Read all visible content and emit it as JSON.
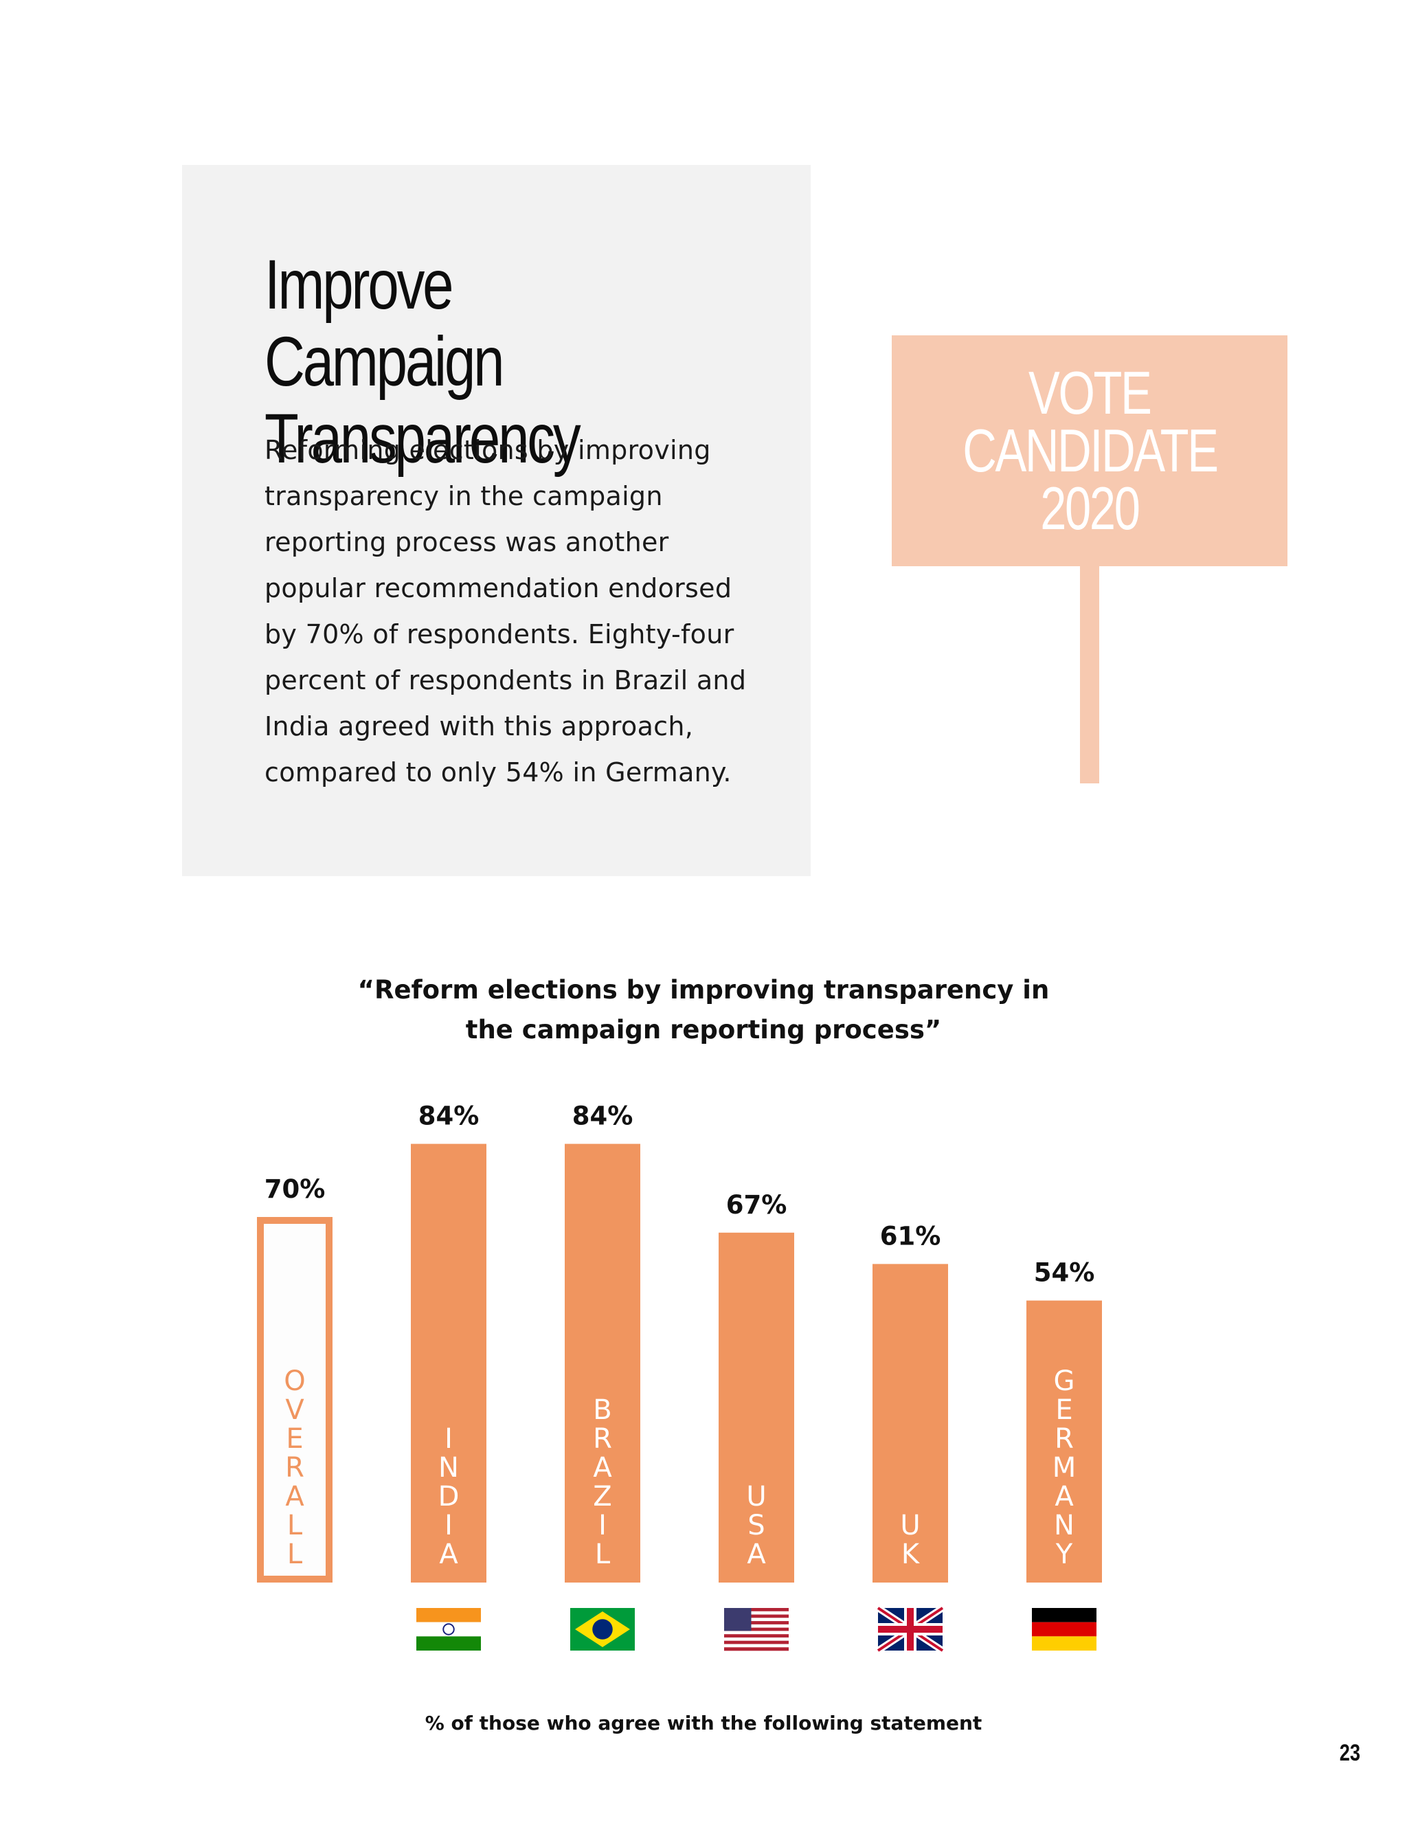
{
  "section": {
    "title_line1": "Improve Campaign",
    "title_line2": "Transparency",
    "body_lines": [
      "Reforming elections by improving",
      "transparency in the campaign",
      "reporting process was another",
      "popular recommendation endorsed",
      "by 70% of respondents. Eighty-four",
      "percent of respondents in Brazil and",
      "India agreed with this approach,",
      "compared to only 54% in Germany."
    ]
  },
  "sign": {
    "line1": "VOTE",
    "line2": "CANDIDATE",
    "line3": "2020"
  },
  "colors": {
    "accent": "#f0955f",
    "sign": "#f7c9b0",
    "panel": "#f2f2f2",
    "outline_fill": "#fdfdfd"
  },
  "chart_data": {
    "type": "bar",
    "title_line1": "“Reform elections by improving transparency in",
    "title_line2": "the campaign reporting process”",
    "categories": [
      "OVERALL",
      "INDIA",
      "BRAZIL",
      "USA",
      "UK",
      "GERMANY"
    ],
    "values": [
      70,
      84,
      84,
      67,
      61,
      54
    ],
    "value_labels": [
      "70%",
      "84%",
      "84%",
      "67%",
      "61%",
      "54%"
    ],
    "flags": [
      "",
      "india-flag-icon",
      "brazil-flag-icon",
      "usa-flag-icon",
      "uk-flag-icon",
      "germany-flag-icon"
    ],
    "highlight": "OVERALL",
    "note": "% of those who agree with the following statement"
  },
  "page_number": "23"
}
